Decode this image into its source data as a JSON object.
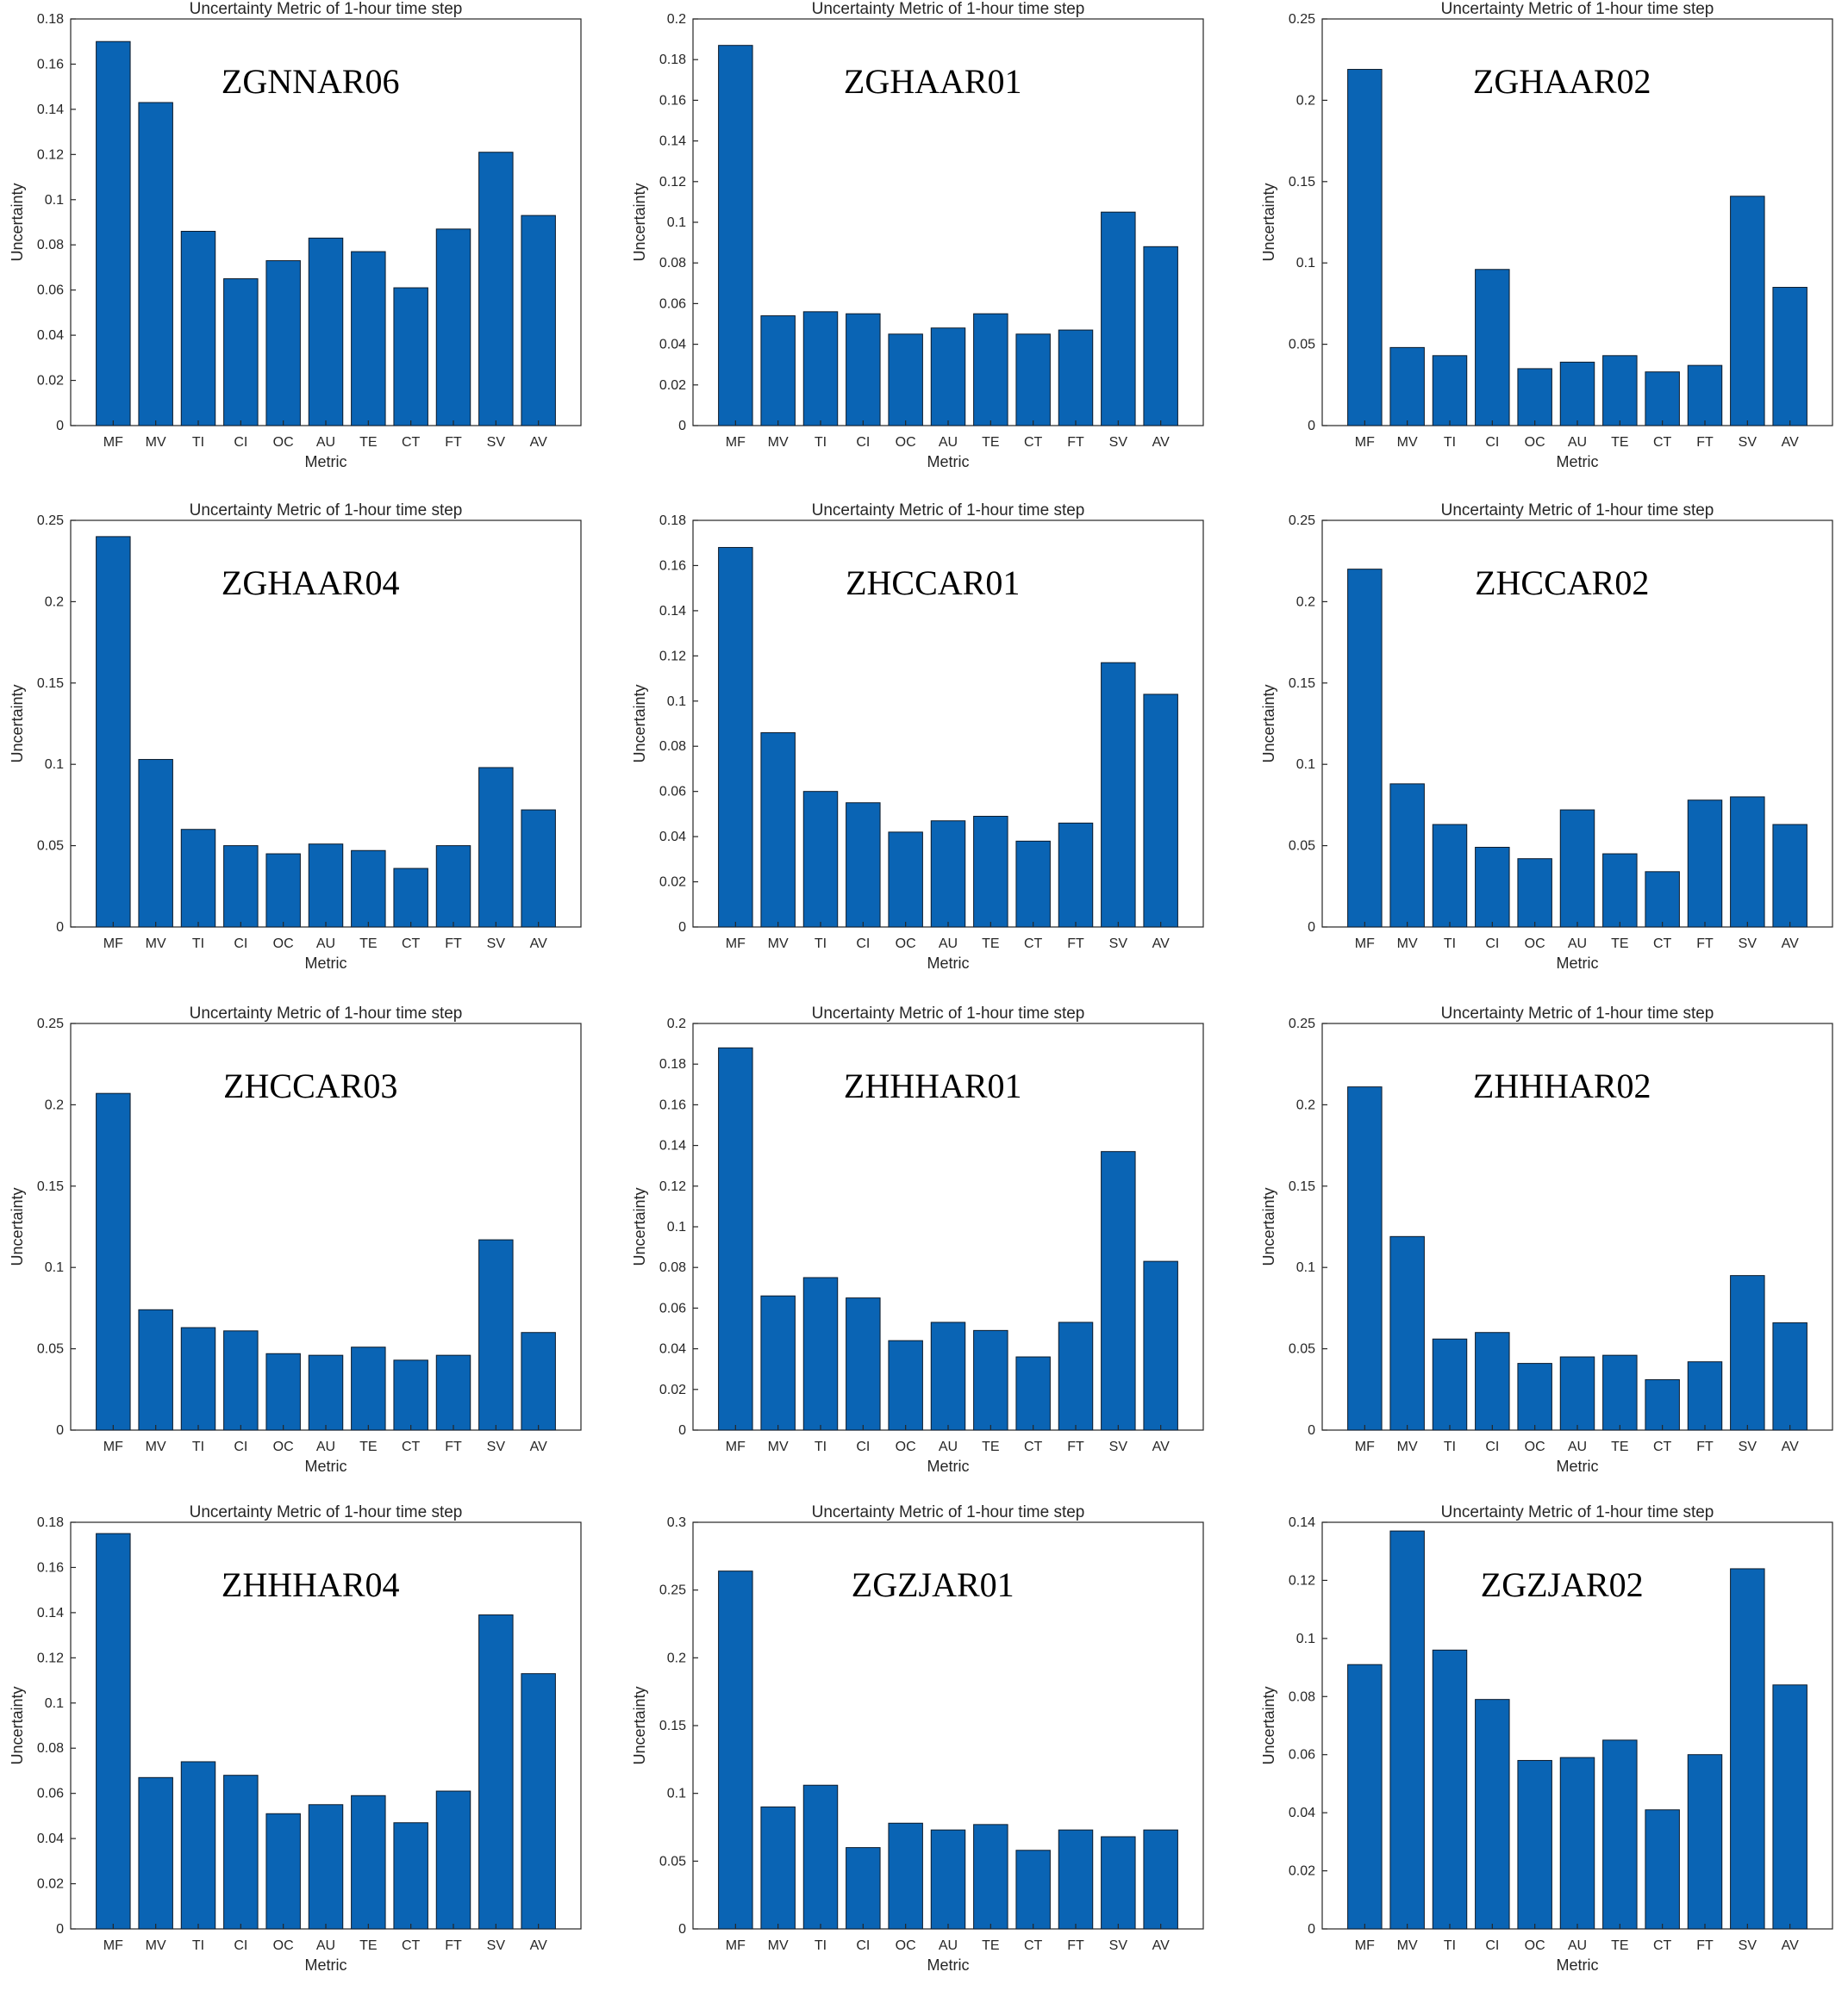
{
  "figure": {
    "bar_color": "#0a64b4",
    "bar_edge_color": "#0c1a2a",
    "axis_color": "#262626"
  },
  "chart_data": [
    {
      "type": "bar",
      "station": "ZGNNAR06",
      "title": "Uncertainty Metric of 1-hour time step",
      "xlabel": "Metric",
      "ylabel": "Uncertainty",
      "categories": [
        "MF",
        "MV",
        "TI",
        "CI",
        "OC",
        "AU",
        "TE",
        "CT",
        "FT",
        "SV",
        "AV"
      ],
      "values": [
        0.17,
        0.143,
        0.086,
        0.065,
        0.073,
        0.083,
        0.077,
        0.061,
        0.087,
        0.121,
        0.093
      ],
      "ylim": [
        0,
        0.18
      ],
      "yticks": [
        0,
        0.02,
        0.04,
        0.06,
        0.08,
        0.1,
        0.12,
        0.14,
        0.16,
        0.18
      ],
      "ytick_labels": [
        "0",
        "0.02",
        "0.04",
        "0.06",
        "0.08",
        "0.1",
        "0.12",
        "0.14",
        "0.16",
        "0.18"
      ]
    },
    {
      "type": "bar",
      "station": "ZGHAAR01",
      "title": "Uncertainty Metric of 1-hour time step",
      "xlabel": "Metric",
      "ylabel": "Uncertainty",
      "categories": [
        "MF",
        "MV",
        "TI",
        "CI",
        "OC",
        "AU",
        "TE",
        "CT",
        "FT",
        "SV",
        "AV"
      ],
      "values": [
        0.187,
        0.054,
        0.056,
        0.055,
        0.045,
        0.048,
        0.055,
        0.045,
        0.047,
        0.105,
        0.088
      ],
      "ylim": [
        0,
        0.2
      ],
      "yticks": [
        0,
        0.02,
        0.04,
        0.06,
        0.08,
        0.1,
        0.12,
        0.14,
        0.16,
        0.18,
        0.2
      ],
      "ytick_labels": [
        "0",
        "0.02",
        "0.04",
        "0.06",
        "0.08",
        "0.1",
        "0.12",
        "0.14",
        "0.16",
        "0.18",
        "0.2"
      ]
    },
    {
      "type": "bar",
      "station": "ZGHAAR02",
      "title": "Uncertainty Metric of 1-hour time step",
      "xlabel": "Metric",
      "ylabel": "Uncertainty",
      "categories": [
        "MF",
        "MV",
        "TI",
        "CI",
        "OC",
        "AU",
        "TE",
        "CT",
        "FT",
        "SV",
        "AV"
      ],
      "values": [
        0.219,
        0.048,
        0.043,
        0.096,
        0.035,
        0.039,
        0.043,
        0.033,
        0.037,
        0.141,
        0.085
      ],
      "ylim": [
        0,
        0.25
      ],
      "yticks": [
        0,
        0.05,
        0.1,
        0.15,
        0.2,
        0.25
      ],
      "ytick_labels": [
        "0",
        "0.05",
        "0.1",
        "0.15",
        "0.2",
        "0.25"
      ]
    },
    {
      "type": "bar",
      "station": "ZGHAAR04",
      "title": "Uncertainty Metric of 1-hour time step",
      "xlabel": "Metric",
      "ylabel": "Uncertainty",
      "categories": [
        "MF",
        "MV",
        "TI",
        "CI",
        "OC",
        "AU",
        "TE",
        "CT",
        "FT",
        "SV",
        "AV"
      ],
      "values": [
        0.24,
        0.103,
        0.06,
        0.05,
        0.045,
        0.051,
        0.047,
        0.036,
        0.05,
        0.098,
        0.072
      ],
      "ylim": [
        0,
        0.25
      ],
      "yticks": [
        0,
        0.05,
        0.1,
        0.15,
        0.2,
        0.25
      ],
      "ytick_labels": [
        "0",
        "0.05",
        "0.1",
        "0.15",
        "0.2",
        "0.25"
      ]
    },
    {
      "type": "bar",
      "station": "ZHCCAR01",
      "title": "Uncertainty Metric of 1-hour time step",
      "xlabel": "Metric",
      "ylabel": "Uncertainty",
      "categories": [
        "MF",
        "MV",
        "TI",
        "CI",
        "OC",
        "AU",
        "TE",
        "CT",
        "FT",
        "SV",
        "AV"
      ],
      "values": [
        0.168,
        0.086,
        0.06,
        0.055,
        0.042,
        0.047,
        0.049,
        0.038,
        0.046,
        0.117,
        0.103
      ],
      "ylim": [
        0,
        0.18
      ],
      "yticks": [
        0,
        0.02,
        0.04,
        0.06,
        0.08,
        0.1,
        0.12,
        0.14,
        0.16,
        0.18
      ],
      "ytick_labels": [
        "0",
        "0.02",
        "0.04",
        "0.06",
        "0.08",
        "0.1",
        "0.12",
        "0.14",
        "0.16",
        "0.18"
      ]
    },
    {
      "type": "bar",
      "station": "ZHCCAR02",
      "title": "Uncertainty Metric of 1-hour time step",
      "xlabel": "Metric",
      "ylabel": "Uncertainty",
      "categories": [
        "MF",
        "MV",
        "TI",
        "CI",
        "OC",
        "AU",
        "TE",
        "CT",
        "FT",
        "SV",
        "AV"
      ],
      "values": [
        0.22,
        0.088,
        0.063,
        0.049,
        0.042,
        0.072,
        0.045,
        0.034,
        0.078,
        0.08,
        0.063
      ],
      "ylim": [
        0,
        0.25
      ],
      "yticks": [
        0,
        0.05,
        0.1,
        0.15,
        0.2,
        0.25
      ],
      "ytick_labels": [
        "0",
        "0.05",
        "0.1",
        "0.15",
        "0.2",
        "0.25"
      ]
    },
    {
      "type": "bar",
      "station": "ZHCCAR03",
      "title": "Uncertainty Metric of 1-hour time step",
      "xlabel": "Metric",
      "ylabel": "Uncertainty",
      "categories": [
        "MF",
        "MV",
        "TI",
        "CI",
        "OC",
        "AU",
        "TE",
        "CT",
        "FT",
        "SV",
        "AV"
      ],
      "values": [
        0.207,
        0.074,
        0.063,
        0.061,
        0.047,
        0.046,
        0.051,
        0.043,
        0.046,
        0.117,
        0.06
      ],
      "ylim": [
        0,
        0.25
      ],
      "yticks": [
        0,
        0.05,
        0.1,
        0.15,
        0.2,
        0.25
      ],
      "ytick_labels": [
        "0",
        "0.05",
        "0.1",
        "0.15",
        "0.2",
        "0.25"
      ]
    },
    {
      "type": "bar",
      "station": "ZHHHAR01",
      "title": "Uncertainty Metric of 1-hour time step",
      "xlabel": "Metric",
      "ylabel": "Uncertainty",
      "categories": [
        "MF",
        "MV",
        "TI",
        "CI",
        "OC",
        "AU",
        "TE",
        "CT",
        "FT",
        "SV",
        "AV"
      ],
      "values": [
        0.188,
        0.066,
        0.075,
        0.065,
        0.044,
        0.053,
        0.049,
        0.036,
        0.053,
        0.137,
        0.083
      ],
      "ylim": [
        0,
        0.2
      ],
      "yticks": [
        0,
        0.02,
        0.04,
        0.06,
        0.08,
        0.1,
        0.12,
        0.14,
        0.16,
        0.18,
        0.2
      ],
      "ytick_labels": [
        "0",
        "0.02",
        "0.04",
        "0.06",
        "0.08",
        "0.1",
        "0.12",
        "0.14",
        "0.16",
        "0.18",
        "0.2"
      ]
    },
    {
      "type": "bar",
      "station": "ZHHHAR02",
      "title": "Uncertainty Metric of 1-hour time step",
      "xlabel": "Metric",
      "ylabel": "Uncertainty",
      "categories": [
        "MF",
        "MV",
        "TI",
        "CI",
        "OC",
        "AU",
        "TE",
        "CT",
        "FT",
        "SV",
        "AV"
      ],
      "values": [
        0.211,
        0.119,
        0.056,
        0.06,
        0.041,
        0.045,
        0.046,
        0.031,
        0.042,
        0.095,
        0.066
      ],
      "ylim": [
        0,
        0.25
      ],
      "yticks": [
        0,
        0.05,
        0.1,
        0.15,
        0.2,
        0.25
      ],
      "ytick_labels": [
        "0",
        "0.05",
        "0.1",
        "0.15",
        "0.2",
        "0.25"
      ]
    },
    {
      "type": "bar",
      "station": "ZHHHAR04",
      "title": "Uncertainty Metric of 1-hour time step",
      "xlabel": "Metric",
      "ylabel": "Uncertainty",
      "categories": [
        "MF",
        "MV",
        "TI",
        "CI",
        "OC",
        "AU",
        "TE",
        "CT",
        "FT",
        "SV",
        "AV"
      ],
      "values": [
        0.175,
        0.067,
        0.074,
        0.068,
        0.051,
        0.055,
        0.059,
        0.047,
        0.061,
        0.139,
        0.113
      ],
      "ylim": [
        0,
        0.18
      ],
      "yticks": [
        0,
        0.02,
        0.04,
        0.06,
        0.08,
        0.1,
        0.12,
        0.14,
        0.16,
        0.18
      ],
      "ytick_labels": [
        "0",
        "0.02",
        "0.04",
        "0.06",
        "0.08",
        "0.1",
        "0.12",
        "0.14",
        "0.16",
        "0.18"
      ]
    },
    {
      "type": "bar",
      "station": "ZGZJAR01",
      "title": "Uncertainty Metric of 1-hour time step",
      "xlabel": "Metric",
      "ylabel": "Uncertainty",
      "categories": [
        "MF",
        "MV",
        "TI",
        "CI",
        "OC",
        "AU",
        "TE",
        "CT",
        "FT",
        "SV",
        "AV"
      ],
      "values": [
        0.264,
        0.09,
        0.106,
        0.06,
        0.078,
        0.073,
        0.077,
        0.058,
        0.073,
        0.068,
        0.073
      ],
      "ylim": [
        0,
        0.3
      ],
      "yticks": [
        0,
        0.05,
        0.1,
        0.15,
        0.2,
        0.25,
        0.3
      ],
      "ytick_labels": [
        "0",
        "0.05",
        "0.1",
        "0.15",
        "0.2",
        "0.25",
        "0.3"
      ]
    },
    {
      "type": "bar",
      "station": "ZGZJAR02",
      "title": "Uncertainty Metric of 1-hour time step",
      "xlabel": "Metric",
      "ylabel": "Uncertainty",
      "categories": [
        "MF",
        "MV",
        "TI",
        "CI",
        "OC",
        "AU",
        "TE",
        "CT",
        "FT",
        "SV",
        "AV"
      ],
      "values": [
        0.091,
        0.137,
        0.096,
        0.079,
        0.058,
        0.059,
        0.065,
        0.041,
        0.06,
        0.124,
        0.084
      ],
      "ylim": [
        0,
        0.14
      ],
      "yticks": [
        0,
        0.02,
        0.04,
        0.06,
        0.08,
        0.1,
        0.12,
        0.14
      ],
      "ytick_labels": [
        "0",
        "0.02",
        "0.04",
        "0.06",
        "0.08",
        "0.1",
        "0.12",
        "0.14"
      ]
    }
  ]
}
